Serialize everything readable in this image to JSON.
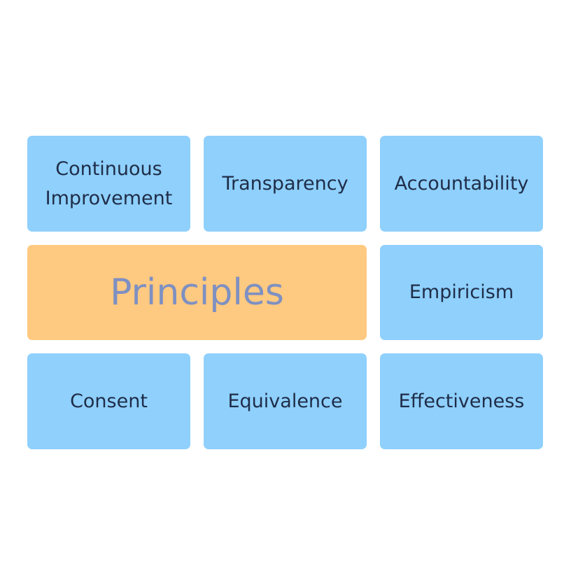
{
  "center": {
    "label": "Principles"
  },
  "tiles": {
    "continuous_improvement": "Continuous\nImprovement",
    "transparency": "Transparency",
    "accountability": "Accountability",
    "empiricism": "Empiricism",
    "consent": "Consent",
    "equivalence": "Equivalence",
    "effectiveness": "Effectiveness"
  },
  "colors": {
    "tile": "#8fd0fd",
    "tile_text": "#1f2d48",
    "center_tile": "#fec980",
    "center_text": "#7e90c2",
    "background": "#ffffff"
  }
}
